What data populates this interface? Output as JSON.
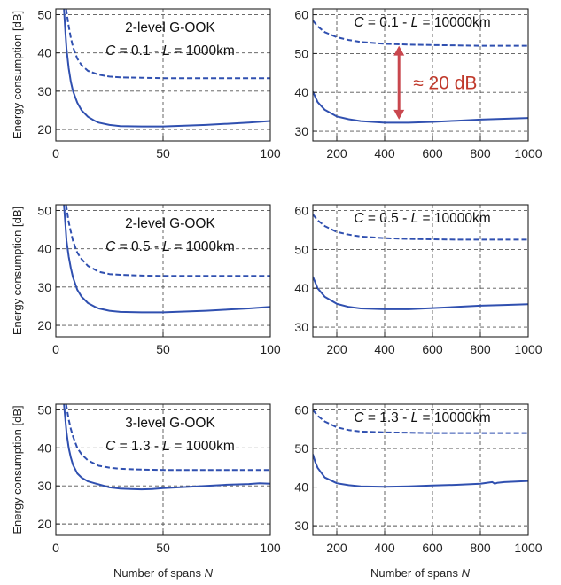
{
  "style": {
    "line_color": "#3050b0",
    "arrow_color": "#c9474e",
    "grid_color": "#555555"
  },
  "figure": {
    "ylabel": "Energy consumption [dB]",
    "xlabel_prefix": "Number of spans ",
    "xlabel_var": "N"
  },
  "chart_data": [
    {
      "type": "line",
      "xlim": [
        0,
        100
      ],
      "ylim": [
        17,
        51.5
      ],
      "xticks": [
        0,
        50,
        100
      ],
      "yticks": [
        20,
        30,
        40,
        50
      ],
      "grid": true,
      "annotation": {
        "line1": "2-level G-OOK",
        "C": "C",
        "c_value": " = 0.1 - ",
        "L": "L",
        "l_value": " = 1000km"
      },
      "series": [
        {
          "style": "dashed",
          "x": [
            4.8,
            6,
            7,
            8,
            10,
            12,
            15,
            20,
            25,
            30,
            40,
            50,
            60,
            70,
            80,
            90,
            100
          ],
          "y": [
            51.5,
            47,
            44,
            41.5,
            38.5,
            36.8,
            35.3,
            34.3,
            33.8,
            33.6,
            33.5,
            33.4,
            33.4,
            33.4,
            33.4,
            33.4,
            33.4
          ]
        },
        {
          "style": "solid",
          "x": [
            3.8,
            4.5,
            5,
            6,
            7,
            8,
            10,
            12,
            15,
            18,
            20,
            25,
            30,
            40,
            50,
            60,
            70,
            80,
            90,
            100
          ],
          "y": [
            51.5,
            45,
            41,
            36,
            32.5,
            30,
            27,
            25,
            23.3,
            22.3,
            21.8,
            21.2,
            20.9,
            20.8,
            20.8,
            21,
            21.2,
            21.5,
            21.8,
            22.2
          ]
        }
      ]
    },
    {
      "type": "line",
      "xlim": [
        100,
        1000
      ],
      "ylim": [
        27.5,
        61.5
      ],
      "xticks": [
        200,
        400,
        600,
        800,
        1000
      ],
      "yticks": [
        30,
        40,
        50,
        60
      ],
      "grid": true,
      "annotation": {
        "line1": "",
        "C": "C",
        "c_value": " = 0.1 - ",
        "L": "L",
        "l_value": " = 10000km"
      },
      "callout": {
        "label": "≈ 20 dB",
        "from": 33,
        "to": 52
      },
      "series": [
        {
          "style": "dashed",
          "x": [
            100,
            120,
            150,
            200,
            250,
            300,
            400,
            500,
            600,
            700,
            800,
            900,
            1000
          ],
          "y": [
            58.5,
            57,
            55.5,
            54.2,
            53.5,
            53,
            52.5,
            52.3,
            52.2,
            52.1,
            52,
            52,
            52
          ]
        },
        {
          "style": "solid",
          "x": [
            100,
            120,
            150,
            200,
            250,
            300,
            400,
            500,
            600,
            700,
            800,
            900,
            1000
          ],
          "y": [
            40.2,
            37.5,
            35.5,
            33.8,
            33.1,
            32.6,
            32.2,
            32.2,
            32.4,
            32.7,
            33,
            33.2,
            33.4
          ]
        }
      ]
    },
    {
      "type": "line",
      "xlim": [
        0,
        100
      ],
      "ylim": [
        17,
        51.5
      ],
      "xticks": [
        0,
        50,
        100
      ],
      "yticks": [
        20,
        30,
        40,
        50
      ],
      "grid": true,
      "annotation": {
        "line1": "2-level G-OOK",
        "C": "C",
        "c_value": " = 0.5 - ",
        "L": "L",
        "l_value": " = 1000km"
      },
      "series": [
        {
          "style": "dashed",
          "x": [
            4.8,
            6,
            7,
            8,
            10,
            12,
            15,
            20,
            25,
            30,
            40,
            50,
            60,
            70,
            80,
            90,
            100
          ],
          "y": [
            51.5,
            47,
            44.5,
            42,
            39,
            37.3,
            35.5,
            34,
            33.4,
            33.2,
            33,
            32.9,
            32.9,
            32.9,
            32.9,
            32.9,
            32.9
          ]
        },
        {
          "style": "solid",
          "x": [
            3.8,
            4.5,
            5,
            6,
            7,
            8,
            10,
            12,
            15,
            18,
            20,
            25,
            30,
            40,
            50,
            60,
            70,
            80,
            90,
            100
          ],
          "y": [
            51.5,
            46,
            42,
            38,
            35,
            32.5,
            29.3,
            27.5,
            25.8,
            24.9,
            24.4,
            23.8,
            23.5,
            23.4,
            23.4,
            23.6,
            23.8,
            24.1,
            24.4,
            24.8
          ]
        }
      ]
    },
    {
      "type": "line",
      "xlim": [
        100,
        1000
      ],
      "ylim": [
        27.5,
        61.5
      ],
      "xticks": [
        200,
        400,
        600,
        800,
        1000
      ],
      "yticks": [
        30,
        40,
        50,
        60
      ],
      "grid": true,
      "annotation": {
        "line1": "",
        "C": "C",
        "c_value": " = 0.5 - ",
        "L": "L",
        "l_value": " = 10000km"
      },
      "series": [
        {
          "style": "dashed",
          "x": [
            100,
            120,
            150,
            200,
            250,
            300,
            400,
            500,
            600,
            700,
            800,
            900,
            1000
          ],
          "y": [
            59,
            57.5,
            56,
            54.5,
            53.8,
            53.3,
            52.9,
            52.7,
            52.6,
            52.5,
            52.5,
            52.5,
            52.5
          ]
        },
        {
          "style": "solid",
          "x": [
            100,
            120,
            150,
            200,
            250,
            300,
            400,
            500,
            600,
            700,
            800,
            900,
            1000
          ],
          "y": [
            43,
            40,
            37.8,
            36,
            35.2,
            34.8,
            34.6,
            34.6,
            34.9,
            35.2,
            35.5,
            35.7,
            35.9
          ]
        }
      ]
    },
    {
      "type": "line",
      "xlim": [
        0,
        100
      ],
      "ylim": [
        17,
        51.5
      ],
      "xticks": [
        0,
        50,
        100
      ],
      "yticks": [
        20,
        30,
        40,
        50
      ],
      "grid": true,
      "annotation": {
        "line1": "3-level G-OOK",
        "C": "C",
        "c_value": " = 1.3 - ",
        "L": "L",
        "l_value": " = 1000km"
      },
      "series": [
        {
          "style": "dashed",
          "x": [
            4.8,
            6,
            7,
            8,
            10,
            12,
            15,
            20,
            25,
            30,
            40,
            50,
            60,
            70,
            80,
            90,
            100
          ],
          "y": [
            51.5,
            47.5,
            45,
            43,
            40,
            38.3,
            36.7,
            35.3,
            34.8,
            34.5,
            34.3,
            34.2,
            34.2,
            34.2,
            34.2,
            34.2,
            34.2
          ]
        },
        {
          "style": "solid",
          "x": [
            3.8,
            4.5,
            5,
            6,
            7,
            8,
            10,
            12,
            15,
            18,
            20,
            25,
            30,
            35,
            40,
            45,
            50,
            60,
            70,
            80,
            90,
            95,
            100
          ],
          "y": [
            51.5,
            47,
            44,
            40,
            37.5,
            35.5,
            33.3,
            32.2,
            31.2,
            30.7,
            30.4,
            29.6,
            29.3,
            29.2,
            29.1,
            29.2,
            29.4,
            29.7,
            30,
            30.3,
            30.5,
            30.7,
            30.6
          ]
        }
      ]
    },
    {
      "type": "line",
      "xlim": [
        100,
        1000
      ],
      "ylim": [
        27.5,
        61.5
      ],
      "xticks": [
        200,
        400,
        600,
        800,
        1000
      ],
      "yticks": [
        30,
        40,
        50,
        60
      ],
      "grid": true,
      "annotation": {
        "line1": "",
        "C": "C",
        "c_value": " = 1.3 - ",
        "L": "L",
        "l_value": " = 10000km"
      },
      "series": [
        {
          "style": "dashed",
          "x": [
            100,
            120,
            150,
            200,
            250,
            300,
            400,
            500,
            600,
            700,
            800,
            900,
            1000
          ],
          "y": [
            60,
            58.5,
            57,
            55.5,
            54.8,
            54.4,
            54.2,
            54.1,
            54,
            54,
            54,
            54,
            54
          ]
        },
        {
          "style": "solid",
          "x": [
            100,
            110,
            120,
            150,
            200,
            250,
            300,
            400,
            500,
            600,
            700,
            800,
            850,
            860,
            870,
            900,
            1000
          ],
          "y": [
            48.5,
            46.5,
            45,
            42.5,
            41,
            40.5,
            40.2,
            40.1,
            40.2,
            40.4,
            40.6,
            40.9,
            41.3,
            40.9,
            41.1,
            41.3,
            41.6
          ]
        }
      ]
    }
  ]
}
